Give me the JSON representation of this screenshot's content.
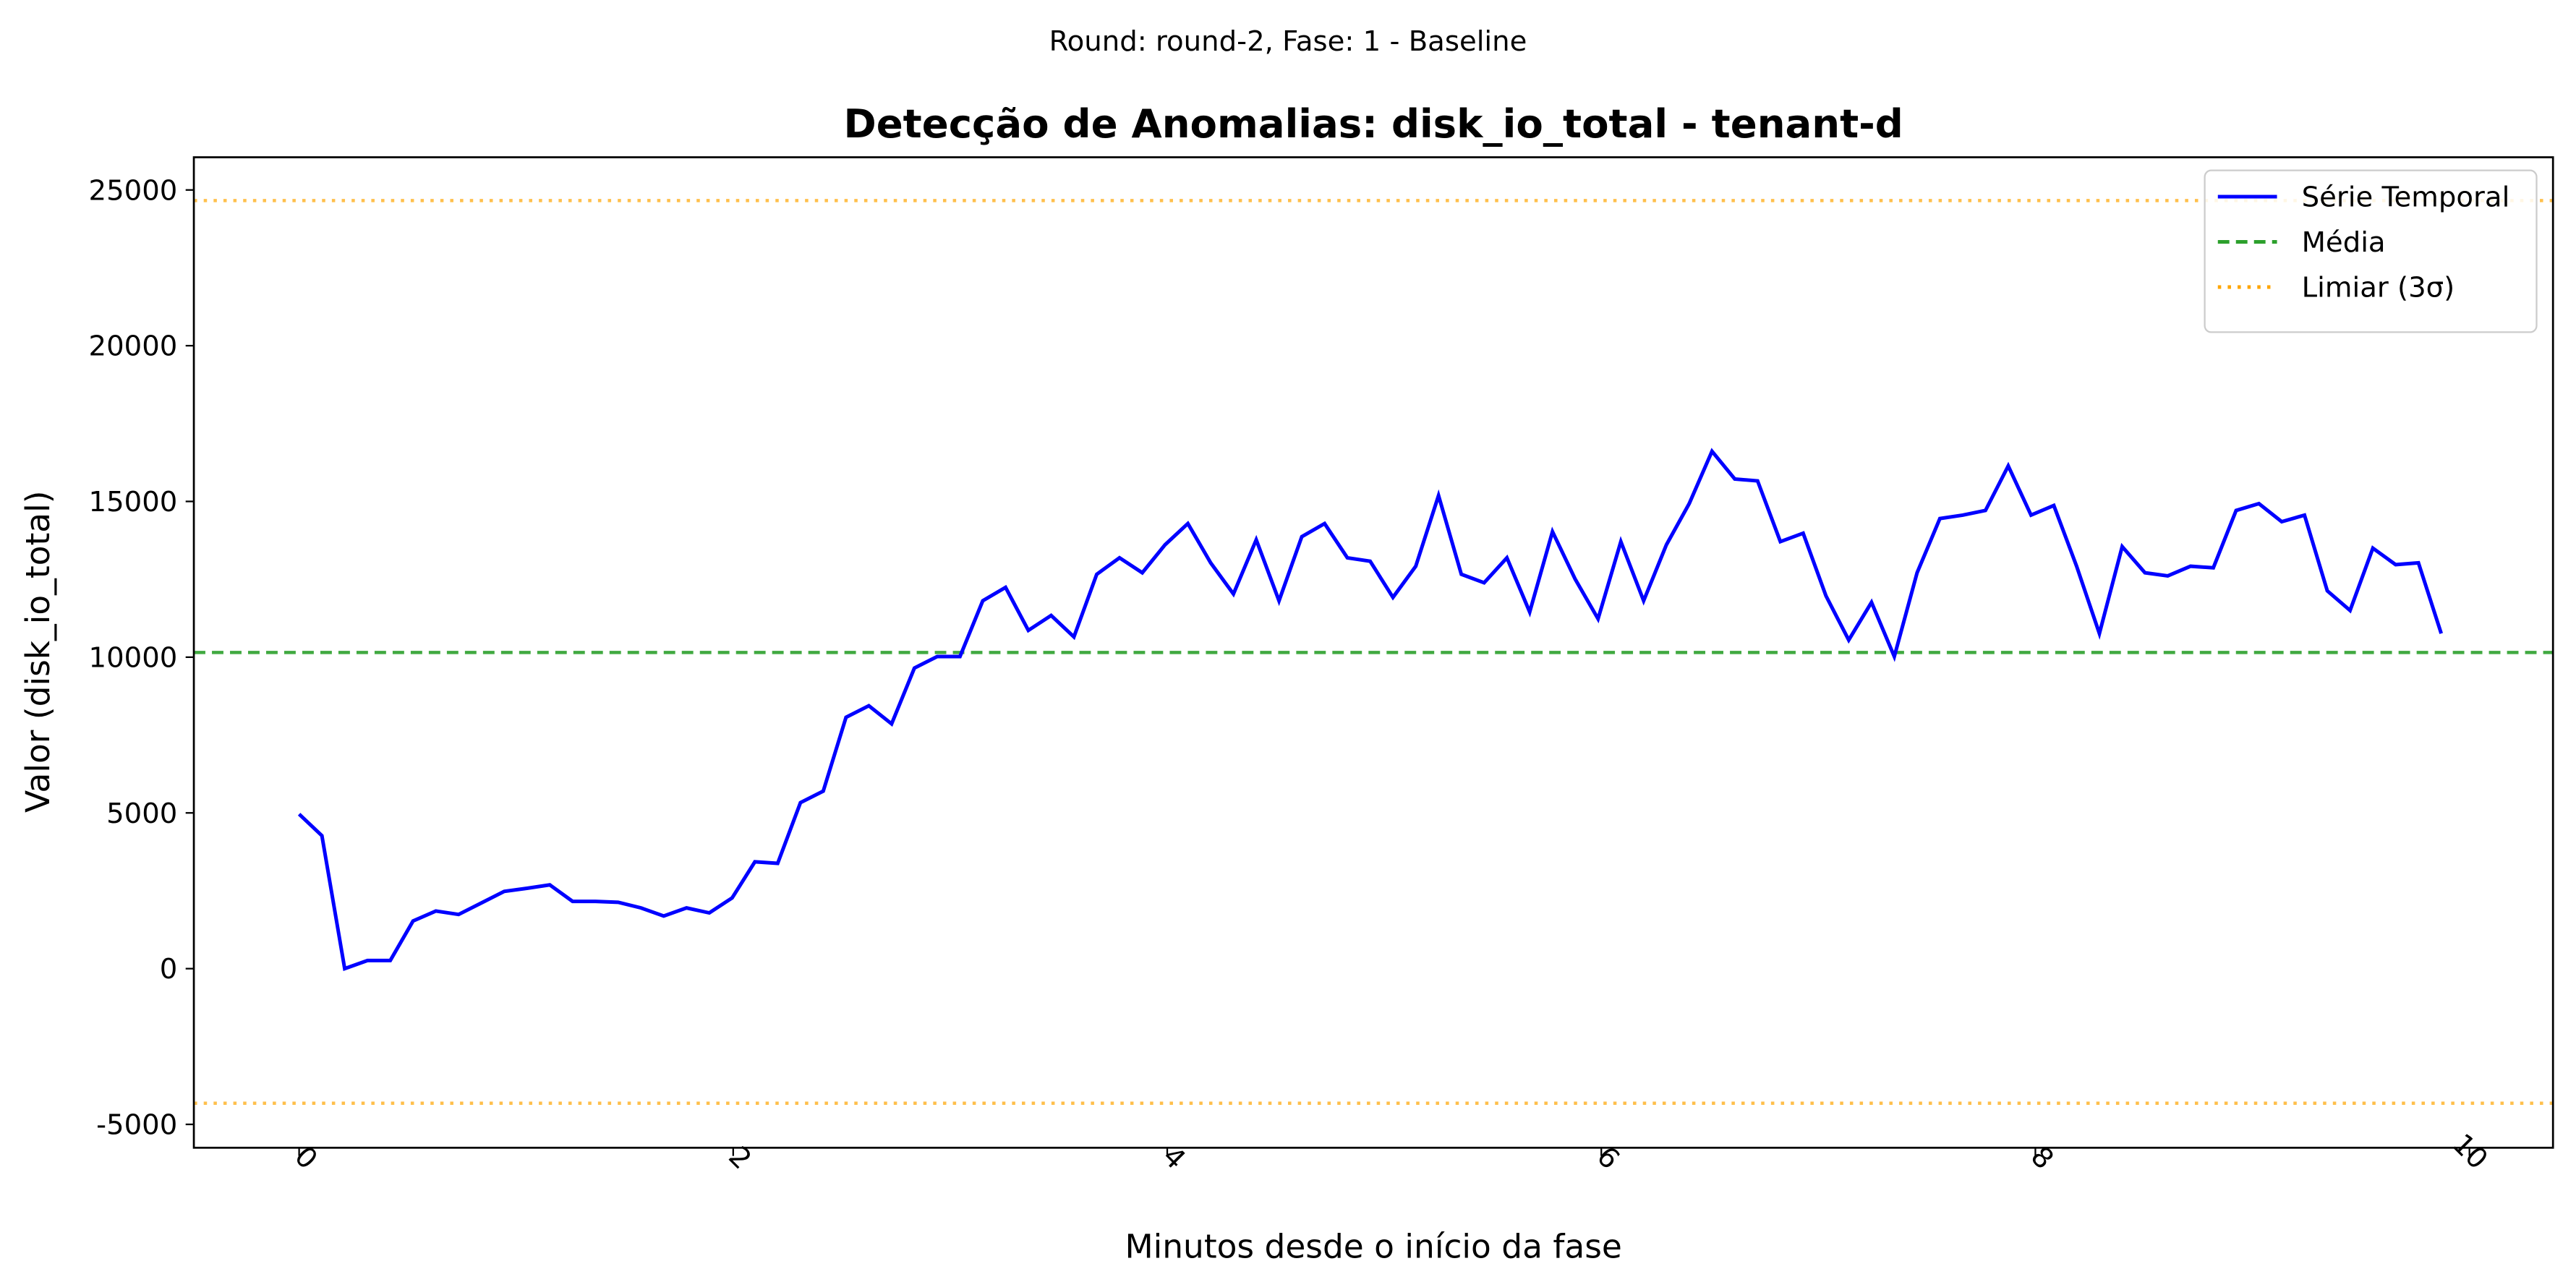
{
  "chart_data": {
    "type": "line",
    "suptitle": "Round: round-2, Fase: 1 - Baseline",
    "title": "Detecção de Anomalias: disk_io_total - tenant-d",
    "xlabel": "Minutos desde o início da fase",
    "ylabel": "Valor (disk_io_total)",
    "x": [
      0,
      0.105,
      0.21,
      0.315,
      0.42,
      0.525,
      0.63,
      0.735,
      0.84,
      0.945,
      1.05,
      1.155,
      1.26,
      1.365,
      1.47,
      1.575,
      1.68,
      1.785,
      1.89,
      1.995,
      2.1,
      2.205,
      2.31,
      2.415,
      2.52,
      2.625,
      2.73,
      2.835,
      2.94,
      3.045,
      3.15,
      3.255,
      3.36,
      3.465,
      3.57,
      3.675,
      3.78,
      3.885,
      3.99,
      4.095,
      4.2,
      4.305,
      4.41,
      4.515,
      4.62,
      4.725,
      4.83,
      4.935,
      5.04,
      5.145,
      5.25,
      5.355,
      5.46,
      5.565,
      5.67,
      5.775,
      5.88,
      5.985,
      6.09,
      6.195,
      6.3,
      6.405,
      6.51,
      6.615,
      6.72,
      6.825,
      6.93,
      7.035,
      7.14,
      7.245,
      7.35,
      7.455,
      7.56,
      7.665,
      7.77,
      7.875,
      7.98,
      8.085,
      8.19,
      8.295,
      8.4,
      8.505,
      8.61,
      8.715,
      8.82,
      8.925,
      9.03,
      9.135,
      9.24,
      9.345,
      9.45,
      9.555,
      9.66,
      9.765,
      9.87
    ],
    "series": [
      {
        "name": "Série Temporal",
        "color": "#0000ff",
        "values": [
          4960,
          4270,
          0,
          260,
          260,
          1530,
          1850,
          1740,
          2110,
          2480,
          2580,
          2690,
          2160,
          2160,
          2130,
          1950,
          1690,
          1950,
          1790,
          2270,
          3430,
          3380,
          5330,
          5700,
          8070,
          8440,
          7860,
          9650,
          10020,
          10020,
          11810,
          12240,
          10860,
          11340,
          10650,
          12660,
          13190,
          12710,
          13610,
          14290,
          13030,
          12030,
          13770,
          11810,
          13870,
          14290,
          13190,
          13080,
          11920,
          12920,
          15190,
          12660,
          12390,
          13190,
          11450,
          14030,
          12500,
          11230,
          13710,
          11810,
          13610,
          14930,
          16610,
          15720,
          15660,
          13710,
          13980,
          11970,
          10550,
          11760,
          10020,
          12710,
          14450,
          14560,
          14710,
          16140,
          14560,
          14870,
          12920,
          10760,
          13550,
          12710,
          12610,
          12920,
          12870,
          14710,
          14930,
          14350,
          14560,
          12130,
          11500,
          13500,
          12970,
          13030,
          10760
        ]
      }
    ],
    "hlines": [
      {
        "name": "Média",
        "color": "#2ca02c",
        "style": "dashed",
        "values": [
          10150
        ]
      },
      {
        "name": "Limiar (3σ)",
        "color": "#ffa500",
        "style": "dotted",
        "values": [
          24660,
          -4320
        ]
      }
    ],
    "xlim": [
      -0.485,
      10.385
    ],
    "ylim": [
      -5750,
      26050
    ],
    "xticks": [
      0,
      2,
      4,
      6,
      8,
      10
    ],
    "yticks": [
      -5000,
      0,
      5000,
      10000,
      15000,
      20000,
      25000
    ],
    "grid": false,
    "legend": "upper right"
  }
}
